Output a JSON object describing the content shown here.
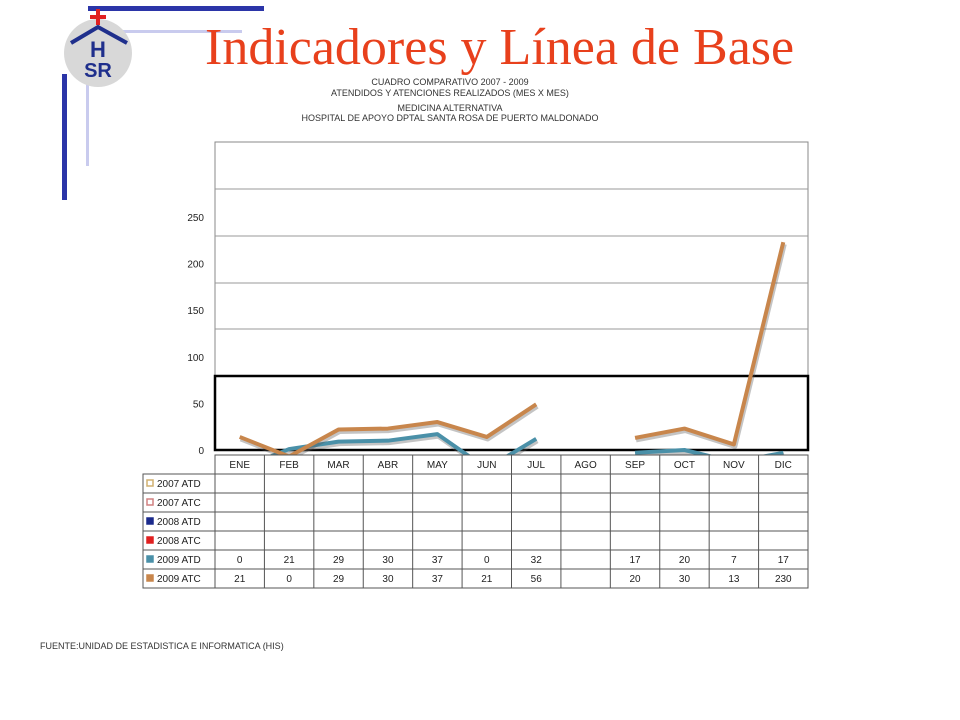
{
  "slide": {
    "title": "Indicadores y Línea de Base",
    "logo_text_top": "H",
    "logo_text_bottom": "SR",
    "source": "FUENTE:UNIDAD DE ESTADISTICA E INFORMATICA (HIS)"
  },
  "colors": {
    "title": "#e8401c",
    "logo_cross": "#e02020",
    "logo_letters": "#1f2f8c",
    "deco_blue": "#2b35a8",
    "deco_lavender": "#c9cbee",
    "atd_2009": "#4a90a8",
    "atc_2009": "#c8864c",
    "atd_2008": "#1b2a8c",
    "atc_2008": "#e02020"
  },
  "chart_data": {
    "type": "line",
    "title_lines": [
      "CUADRO COMPARATIVO 2007 - 2009",
      "ATENDIDOS Y ATENCIONES  REALIZADOS (MES X MES)",
      "MEDICINA ALTERNATIVA",
      "HOSPITAL DE APOYO DPTAL SANTA ROSA DE PUERTO MALDONADO"
    ],
    "categories": [
      "ENE",
      "FEB",
      "MAR",
      "ABR",
      "MAY",
      "JUN",
      "JUL",
      "AGO",
      "SEP",
      "OCT",
      "NOV",
      "DIC"
    ],
    "yticks": [
      "0",
      "50",
      "100",
      "150",
      "200",
      "250"
    ],
    "ylim": [
      -80,
      250
    ],
    "grid": true,
    "series": [
      {
        "name": "2007 ATD",
        "table_values": [
          "",
          "",
          "",
          "",
          "",
          "",
          "",
          "",
          "",
          "",
          "",
          ""
        ],
        "plot_values": []
      },
      {
        "name": "2007 ATC",
        "table_values": [
          "",
          "",
          "",
          "",
          "",
          "",
          "",
          "",
          "",
          "",
          "",
          ""
        ],
        "plot_values": []
      },
      {
        "name": "2008 ATD",
        "table_values": [
          "",
          "",
          "",
          "",
          "",
          "",
          "",
          "",
          "",
          "",
          "",
          ""
        ],
        "plot_values": []
      },
      {
        "name": "2008 ATC",
        "table_values": [
          "",
          "",
          "",
          "",
          "",
          "",
          "",
          "",
          "",
          "",
          "",
          ""
        ],
        "plot_values": []
      },
      {
        "name": "2009 ATD",
        "table_values": [
          "0",
          "21",
          "29",
          "30",
          "37",
          "0",
          "32",
          "",
          "17",
          "20",
          "7",
          "17"
        ],
        "plot_values": [
          -20,
          1,
          9,
          10,
          17,
          -20,
          12,
          null,
          -3,
          0,
          -13,
          -3
        ]
      },
      {
        "name": "2009 ATC",
        "table_values": [
          "21",
          "0",
          "29",
          "30",
          "37",
          "21",
          "56",
          "",
          "20",
          "30",
          "13",
          "230"
        ],
        "plot_values": [
          14,
          -7,
          22,
          23,
          30,
          14,
          49,
          null,
          13,
          23,
          6,
          223
        ]
      }
    ]
  }
}
